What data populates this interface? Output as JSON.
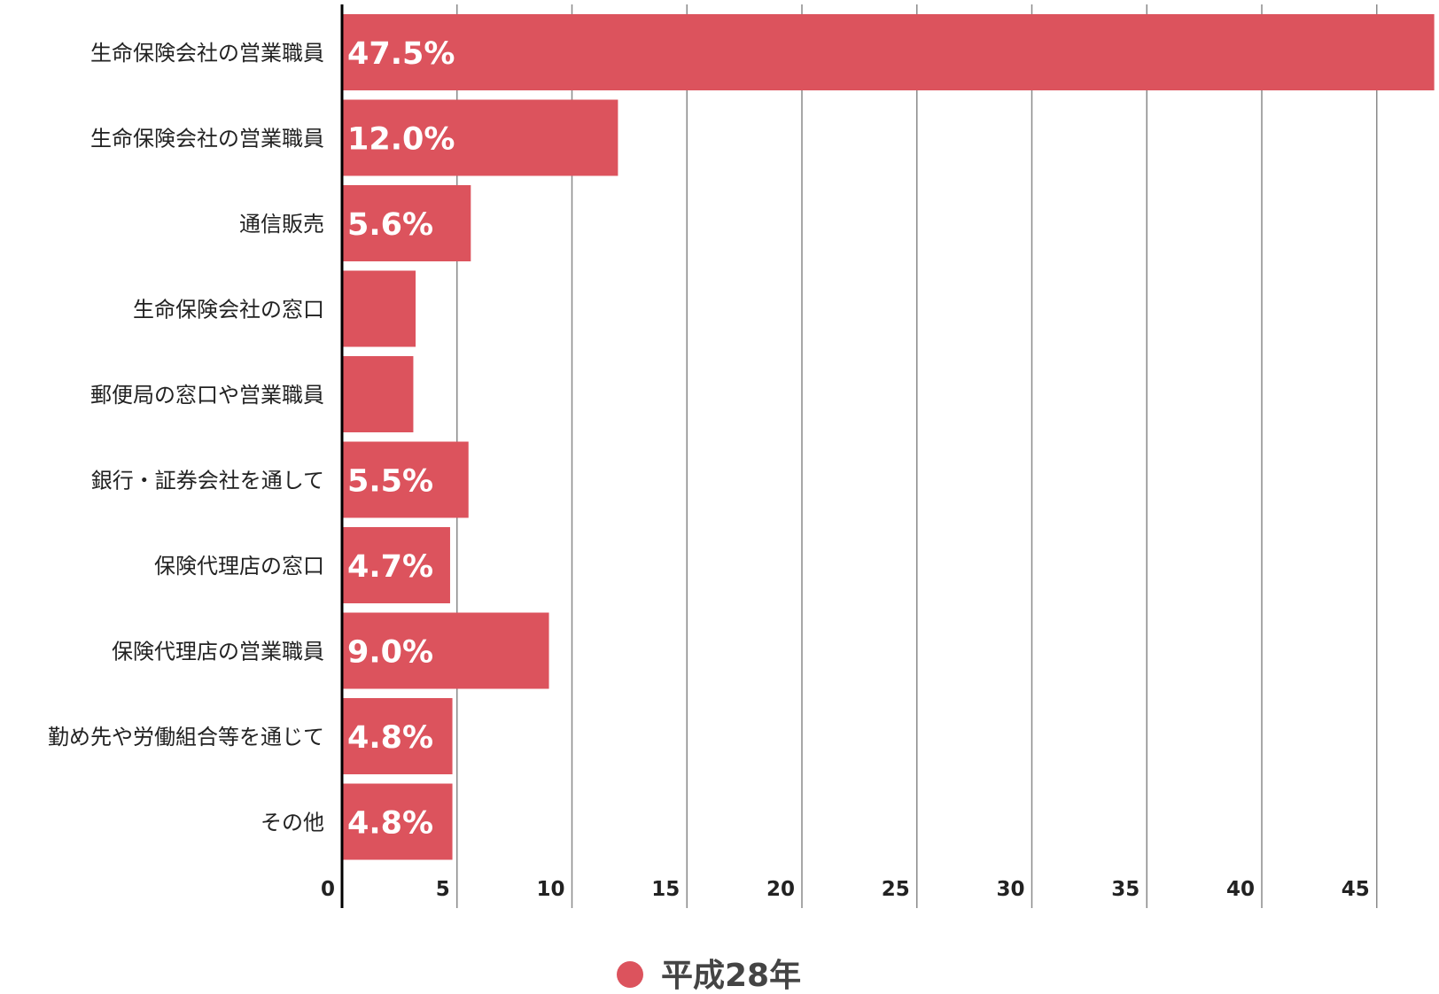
{
  "chart_data": {
    "type": "bar",
    "orientation": "horizontal",
    "categories": [
      "生命保険会社の営業職員",
      "生命保険会社の営業職員",
      "通信販売",
      "生命保険会社の窓口",
      "郵便局の窓口や営業職員",
      "銀行・証券会社を通して",
      "保険代理店の窓口",
      "保険代理店の営業職員",
      "勤め先や労働組合等を通じて",
      "その他"
    ],
    "series": [
      {
        "name": "平成28年",
        "color": "#dc535d",
        "values": [
          47.5,
          12.0,
          5.6,
          3.2,
          3.1,
          5.5,
          4.7,
          9.0,
          4.8,
          4.8
        ],
        "data_labels": [
          "47.5%",
          "12.0%",
          "5.6%",
          "",
          "",
          "5.5%",
          "4.7%",
          "9.0%",
          "4.8%",
          "4.8%"
        ]
      }
    ],
    "xlim": [
      0,
      47.7
    ],
    "xticks": [
      0,
      5,
      10,
      15,
      20,
      25,
      30,
      35,
      40,
      45
    ],
    "xtick_labels": [
      "0",
      "5",
      "10",
      "15",
      "20",
      "25",
      "30",
      "35",
      "40",
      "45"
    ],
    "grid": true,
    "legend": {
      "position": "bottom-center",
      "label": "平成28年"
    },
    "title": "",
    "xlabel": "",
    "ylabel": ""
  }
}
